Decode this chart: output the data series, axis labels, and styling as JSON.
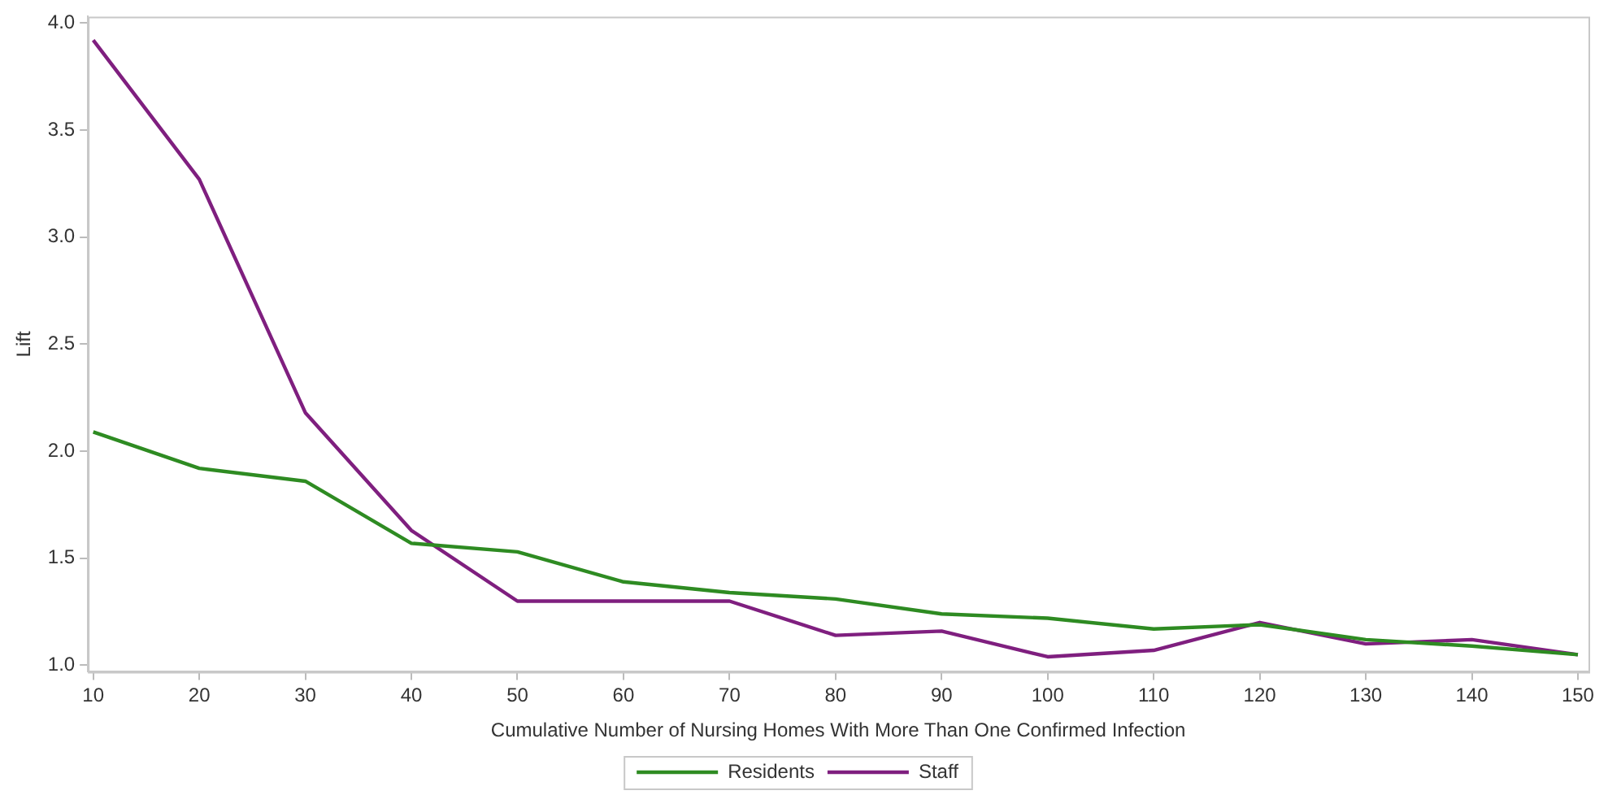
{
  "chart_data": {
    "type": "line",
    "xlabel": "Cumulative Number of Nursing Homes With More Than One Confirmed Infection",
    "ylabel": "Lift",
    "x": [
      10,
      20,
      30,
      40,
      50,
      60,
      70,
      80,
      90,
      100,
      110,
      120,
      130,
      140,
      150
    ],
    "series": [
      {
        "name": "Residents",
        "color": "#2e8b22",
        "values": [
          2.09,
          1.92,
          1.86,
          1.57,
          1.53,
          1.39,
          1.34,
          1.31,
          1.24,
          1.22,
          1.17,
          1.19,
          1.12,
          1.09,
          1.05
        ]
      },
      {
        "name": "Staff",
        "color": "#7f1f7f",
        "values": [
          3.92,
          3.27,
          2.18,
          1.63,
          1.3,
          1.3,
          1.3,
          1.14,
          1.16,
          1.04,
          1.07,
          1.2,
          1.1,
          1.12,
          1.05
        ]
      }
    ],
    "xlim": [
      9.5,
      151
    ],
    "xticks": [
      10,
      20,
      30,
      40,
      50,
      60,
      70,
      80,
      90,
      100,
      110,
      120,
      130,
      140,
      150
    ],
    "ylim": [
      0.97,
      4.03
    ],
    "yticks": [
      {
        "value": 1,
        "label": "1.0"
      },
      1.5,
      {
        "value": 2,
        "label": "2.0"
      },
      2.5,
      {
        "value": 3,
        "label": "3.0"
      },
      3.5,
      {
        "value": 4,
        "label": "4.0"
      }
    ],
    "grid": false,
    "legend": "bottom",
    "marker": "none",
    "line_style": "solid"
  }
}
